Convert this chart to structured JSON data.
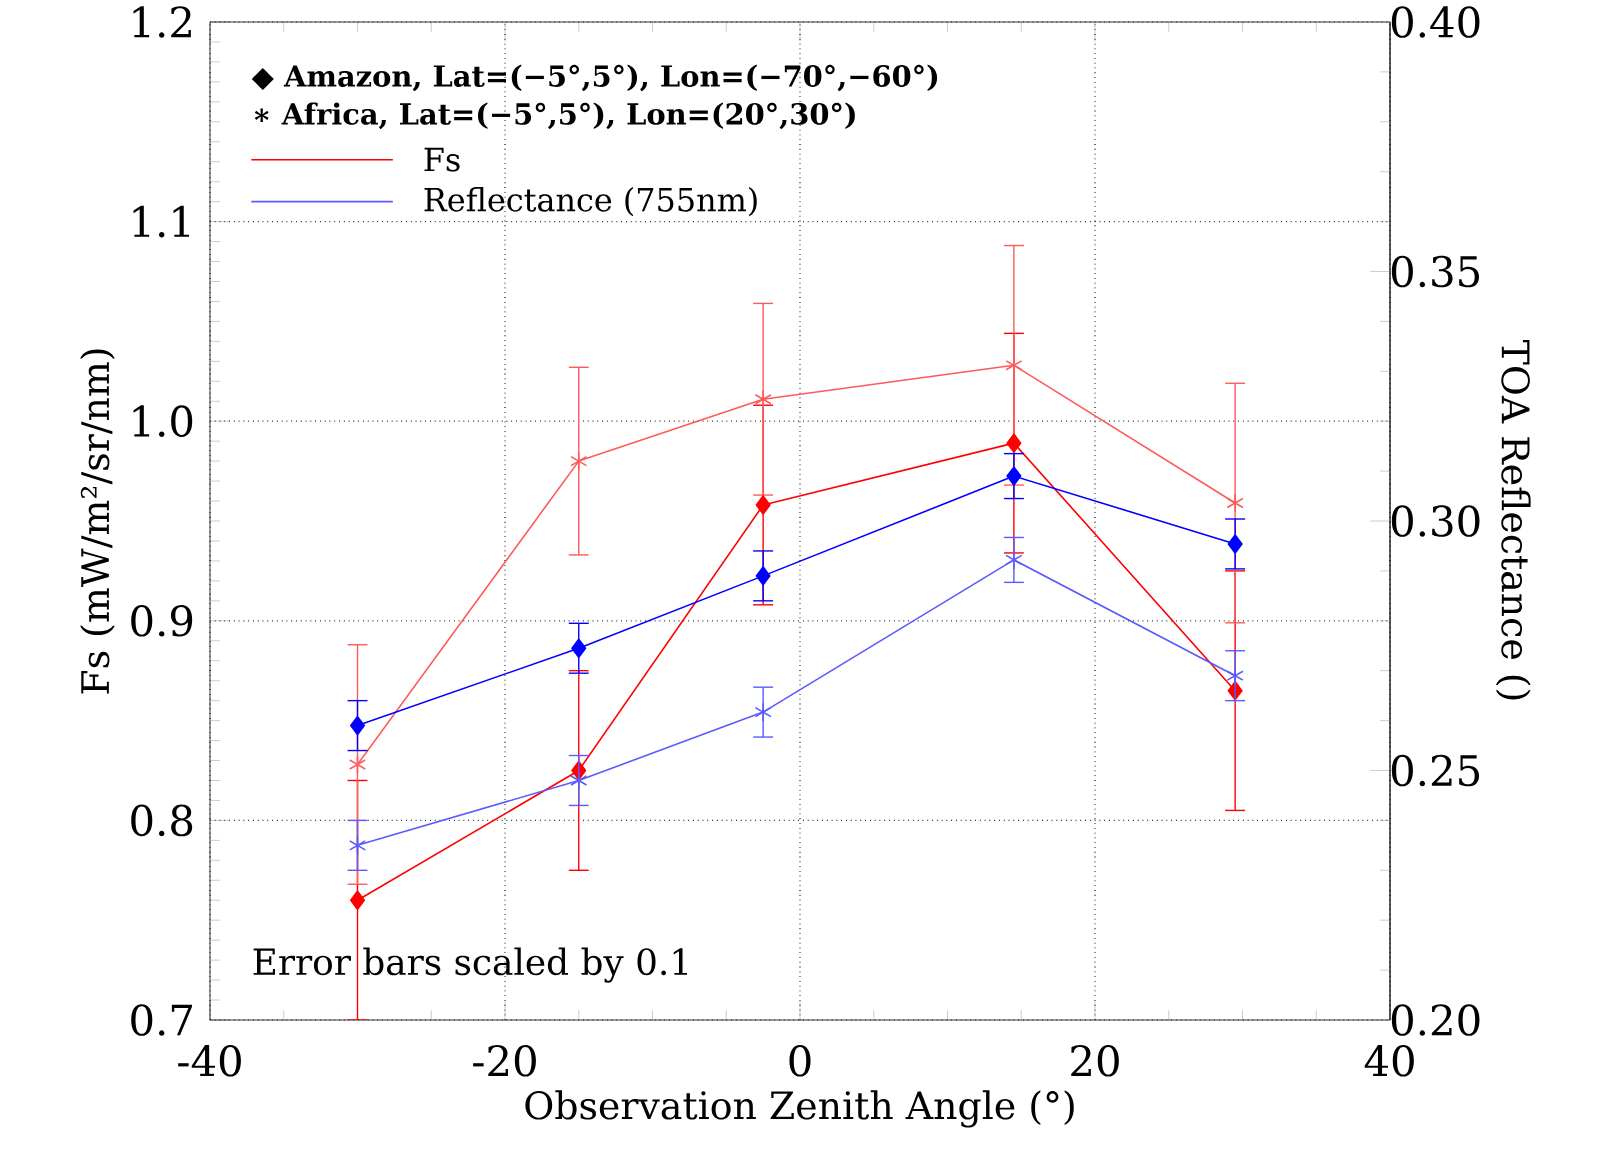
{
  "chart_data": {
    "type": "line",
    "xlabel": "Observation Zenith Angle (°)",
    "ylabel": "Fs (mW/m²/sr/nm)",
    "y2label": "TOA Reflectance ()",
    "x": [
      -30,
      -15,
      -2.5,
      14.5,
      29.5
    ],
    "series": [
      {
        "color": "#ff0000",
        "marker": "diamond",
        "values": [
          0.76,
          0.825,
          0.958,
          0.989,
          0.865
        ],
        "errors": [
          0.06,
          0.05,
          0.05,
          0.055,
          0.06
        ]
      },
      {
        "color": "#ff5a5a",
        "marker": "cross",
        "values": [
          0.828,
          0.98,
          1.011,
          1.028,
          0.959
        ],
        "errors": [
          0.06,
          0.047,
          0.048,
          0.06,
          0.06
        ]
      },
      {
        "color": "#0000ff",
        "marker": "diamond",
        "axis": "y2",
        "values": [
          0.259,
          0.2745,
          0.289,
          0.309,
          0.2954
        ],
        "errors": [
          0.005,
          0.005,
          0.005,
          0.0045,
          0.005
        ]
      },
      {
        "color": "#5a5aff",
        "marker": "cross",
        "axis": "y2",
        "values": [
          0.235,
          0.248,
          0.2617,
          0.2922,
          0.269
        ],
        "errors": [
          0.005,
          0.005,
          0.005,
          0.0045,
          0.005
        ]
      }
    ],
    "xlim": [
      -40,
      40
    ],
    "xticks": [
      -40,
      -20,
      0,
      20,
      40
    ],
    "ylim": [
      0.7,
      1.2
    ],
    "yticks": [
      0.7,
      0.8,
      0.9,
      {
        "value": 1,
        "label": "1.0"
      },
      1.1,
      1.2
    ],
    "y2lim": [
      0.2,
      0.4
    ],
    "y2ticks": [
      {
        "value": 0.2,
        "label": "0.20"
      },
      0.25,
      {
        "value": 0.3,
        "label": "0.30"
      },
      0.35,
      {
        "value": 0.4,
        "label": "0.40"
      }
    ],
    "grid": true,
    "line_style": "solid",
    "annotations": [
      "◆ Amazon, Lat=(−5°,5°), Lon=(−70°,−60°)",
      "∗ Africa, Lat=(−5°,5°), Lon=(20°,30°)",
      "Fs",
      "Reflectance (755nm)",
      "Error bars scaled by 0.1"
    ]
  }
}
